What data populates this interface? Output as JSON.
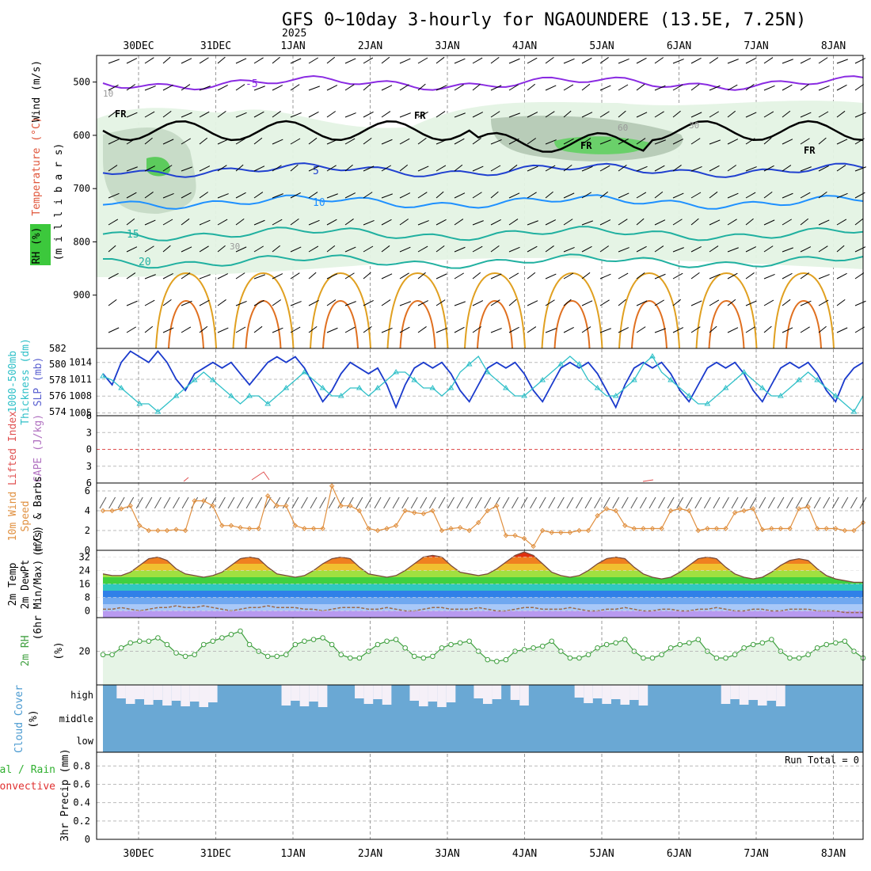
{
  "chart_data": {
    "type": "meteogram",
    "title": "GFS 0~10day 3-hourly for NGAOUNDERE (13.5E, 7.25N)",
    "year_label": "2025",
    "x_dates": [
      "30DEC",
      "31DEC",
      "1JAN",
      "2JAN",
      "3JAN",
      "4JAN",
      "5JAN",
      "6JAN",
      "7JAN",
      "8JAN"
    ],
    "colors": {
      "temp_purple": "#8a2be2",
      "temp_blue": "#2040d0",
      "temp_lightblue": "#1e90ff",
      "temp_teal": "#20b0a0",
      "temp_orange": "#e0a020",
      "rh_green": "#3cc83c",
      "cloud": "#6aa8d4",
      "dewpt": "#9a6a4a"
    },
    "panels": [
      {
        "id": "upper_air",
        "ylabels": [
          "Wind (m/s)",
          "Temperature (°C)",
          "(m i l l i b a r s)",
          "RH (%)"
        ],
        "yticks": [
          500,
          600,
          700,
          800,
          900
        ],
        "ylim": [
          1000,
          450
        ],
        "freezing_label": "FR",
        "isotherm_labels": [
          "-5",
          "5",
          "10",
          "15",
          "20"
        ],
        "rh_contour_labels": [
          "10",
          "30",
          "60"
        ],
        "isotherm_values": [
          -5,
          5,
          10,
          15,
          20
        ]
      },
      {
        "id": "thickness_slp",
        "ylabels": [
          "1000-500mb",
          "Thickness (dm)",
          "SLP (mb)"
        ],
        "thickness_ticks": [
          574,
          576,
          578,
          580,
          582
        ],
        "slp_ticks": [
          1005,
          1008,
          1011,
          1014
        ],
        "thickness_ylim": [
          573.5,
          582
        ],
        "slp_ylim": [
          1004.5,
          1016.5
        ]
      },
      {
        "id": "lifted_cape",
        "ylabels": [
          "Lifted Index",
          "CAPE (J/kg)"
        ],
        "yticks": [
          -6,
          -3,
          0,
          3,
          6
        ],
        "ytick_labels": [
          "6",
          "3",
          "0",
          "3",
          "6"
        ],
        "ylim": [
          -6,
          6
        ]
      },
      {
        "id": "wind10m",
        "ylabels": [
          "10m Wind",
          "Speed",
          "(m/s) & Barbs"
        ],
        "yticks": [
          0,
          2,
          4,
          6
        ],
        "ylim": [
          0,
          6.8
        ]
      },
      {
        "id": "temp2m",
        "ylabels": [
          "2m Temp",
          "2m DewPt",
          "(6hr Min/Max) (°C)"
        ],
        "yticks": [
          0,
          8,
          16,
          24,
          32
        ],
        "ylim": [
          -4,
          36
        ]
      },
      {
        "id": "rh2m",
        "ylabels": [
          "2m RH",
          "(%)"
        ],
        "yticks": [
          20
        ],
        "ylim": [
          0,
          40
        ]
      },
      {
        "id": "cloud",
        "ylabels": [
          "Cloud Cover",
          "(%)"
        ],
        "levels": [
          "high",
          "middle",
          "low"
        ]
      },
      {
        "id": "precip",
        "ylabels": [
          "Total / Rain",
          "Convective",
          "3hr Precip (mm)"
        ],
        "yticks": [
          0,
          0.2,
          0.4,
          0.6,
          0.8
        ],
        "ylim": [
          0,
          0.95
        ],
        "run_total": "Run Total = 0"
      }
    ],
    "series": {
      "slp": [
        1012,
        1010,
        1014,
        1016,
        1015,
        1014,
        1016,
        1014,
        1011,
        1009,
        1012,
        1013,
        1014,
        1013,
        1014,
        1012,
        1010,
        1012,
        1014,
        1015,
        1014,
        1015,
        1013,
        1010,
        1007,
        1009,
        1012,
        1014,
        1013,
        1012,
        1013,
        1010,
        1006,
        1010,
        1013,
        1014,
        1013,
        1014,
        1012,
        1009,
        1007,
        1010,
        1013,
        1014,
        1013,
        1014,
        1012,
        1009,
        1007,
        1010,
        1013,
        1014,
        1013,
        1014,
        1012,
        1009,
        1006,
        1010,
        1013,
        1014,
        1013,
        1014,
        1012,
        1009,
        1007,
        1010,
        1013,
        1014,
        1013,
        1014,
        1012,
        1009,
        1007,
        1010,
        1013,
        1014,
        1013,
        1014,
        1012,
        1009,
        1007,
        1011,
        1013,
        1014
      ],
      "thickness": [
        578.5,
        578,
        577,
        576,
        575,
        575,
        574,
        575,
        576,
        577,
        578,
        579,
        578,
        577,
        576,
        575,
        576,
        576,
        575,
        576,
        577,
        578,
        579,
        578,
        577,
        576,
        576,
        577,
        577,
        576,
        577,
        578,
        579,
        579,
        578,
        577,
        577,
        576,
        577,
        579,
        580,
        581,
        579,
        578,
        577,
        576,
        576,
        577,
        578,
        579,
        580,
        581,
        580,
        578,
        577,
        576,
        576,
        577,
        578,
        580,
        581,
        579,
        578,
        577,
        576,
        575,
        575,
        576,
        577,
        578,
        579,
        578,
        577,
        576,
        576,
        577,
        578,
        579,
        578,
        577,
        576,
        575,
        574,
        576
      ],
      "wind10m": [
        4,
        4,
        4.2,
        4.5,
        2.5,
        2,
        2,
        2,
        2.1,
        2,
        5,
        5,
        4.5,
        2.5,
        2.5,
        2.3,
        2.2,
        2.2,
        5.5,
        4.5,
        4.5,
        2.5,
        2.2,
        2.2,
        2.2,
        6.5,
        4.5,
        4.5,
        4,
        2.2,
        2,
        2.2,
        2.5,
        4,
        3.8,
        3.7,
        4,
        2,
        2.2,
        2.3,
        2,
        2.8,
        4,
        4.5,
        1.5,
        1.5,
        1.2,
        0.4,
        2,
        1.8,
        1.8,
        1.8,
        2,
        2,
        3.5,
        4.2,
        4,
        2.5,
        2.2,
        2.2,
        2.2,
        2.2,
        4,
        4.2,
        4,
        2,
        2.2,
        2.2,
        2.2,
        3.8,
        4,
        4.2,
        2.1,
        2.2,
        2.2,
        2.2,
        4.2,
        4.4,
        2.2,
        2.2,
        2.2,
        2,
        2,
        2.8
      ],
      "temp2m": [
        22,
        21,
        21,
        23,
        27,
        31,
        32,
        30,
        25,
        22,
        21,
        20,
        21,
        23,
        27,
        31,
        32,
        31,
        26,
        22,
        21,
        20,
        21,
        24,
        28,
        31,
        32,
        31,
        26,
        22,
        21,
        20,
        21,
        24,
        28,
        32,
        33,
        32,
        27,
        23,
        22,
        21,
        22,
        25,
        29,
        33,
        35,
        33,
        28,
        23,
        21,
        20,
        21,
        24,
        28,
        31,
        32,
        31,
        26,
        22,
        20,
        19,
        20,
        23,
        27,
        31,
        32,
        31,
        26,
        22,
        20,
        19,
        20,
        23,
        27,
        30,
        31,
        30,
        25,
        21,
        19,
        18,
        17,
        17
      ],
      "dewpt2m": [
        1,
        1,
        2,
        1,
        0,
        1,
        2,
        2,
        3,
        2,
        2,
        3,
        2,
        1,
        0,
        1,
        2,
        2,
        3,
        2,
        2,
        2,
        1,
        1,
        0,
        1,
        2,
        2,
        2,
        1,
        1,
        2,
        1,
        0,
        0,
        1,
        2,
        2,
        1,
        1,
        1,
        2,
        1,
        0,
        0,
        1,
        2,
        2,
        1,
        1,
        1,
        2,
        1,
        0,
        0,
        1,
        1,
        2,
        1,
        0,
        0,
        1,
        1,
        0,
        0,
        1,
        1,
        2,
        1,
        0,
        0,
        1,
        1,
        0,
        0,
        1,
        1,
        1,
        0,
        0,
        0,
        -1,
        -1,
        -1
      ],
      "rh2m": [
        18,
        18,
        22,
        25,
        26,
        26,
        28,
        24,
        19,
        17,
        18,
        24,
        26,
        28,
        30,
        32,
        24,
        20,
        17,
        17,
        18,
        24,
        26,
        27,
        28,
        24,
        18,
        16,
        16,
        20,
        24,
        26,
        27,
        22,
        17,
        16,
        17,
        22,
        24,
        25,
        26,
        20,
        15,
        14,
        15,
        20,
        21,
        22,
        23,
        26,
        20,
        16,
        16,
        18,
        22,
        24,
        25,
        27,
        20,
        16,
        16,
        18,
        22,
        24,
        25,
        27,
        20,
        16,
        16,
        18,
        22,
        24,
        25,
        27,
        20,
        16,
        16,
        18,
        22,
        24,
        25,
        26,
        20,
        16
      ]
    }
  }
}
